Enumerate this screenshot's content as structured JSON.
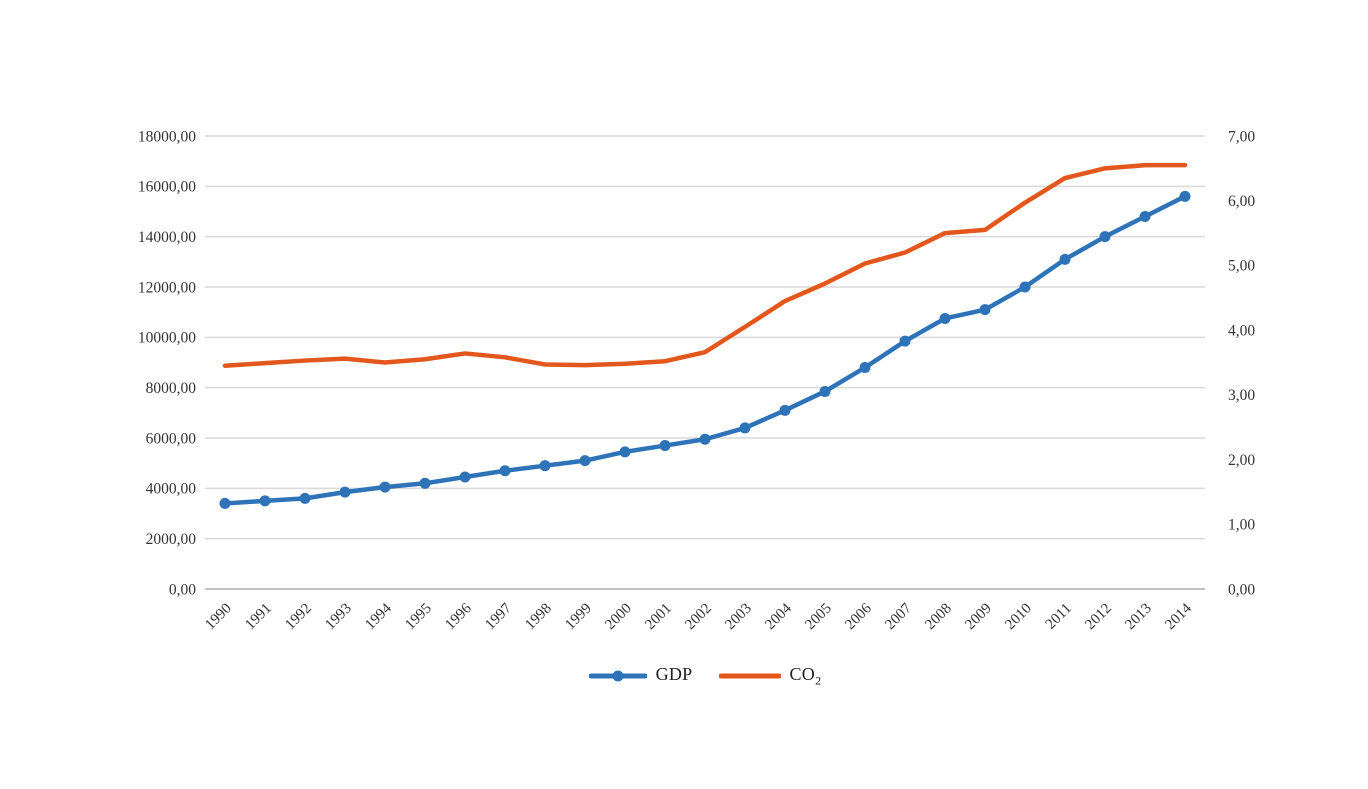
{
  "chart_data": {
    "type": "line",
    "title": "",
    "x": [
      "1990",
      "1991",
      "1992",
      "1993",
      "1994",
      "1995",
      "1996",
      "1997",
      "1998",
      "1999",
      "2000",
      "2001",
      "2002",
      "2003",
      "2004",
      "2005",
      "2006",
      "2007",
      "2008",
      "2009",
      "2010",
      "2011",
      "2012",
      "2013",
      "2014"
    ],
    "series": [
      {
        "name": "GDP",
        "axis": "left",
        "color": "#2E73B8",
        "marker": "circle",
        "values": [
          3400,
          3500,
          3600,
          3850,
          4050,
          4200,
          4450,
          4700,
          4900,
          5100,
          5450,
          5700,
          5950,
          6400,
          7100,
          7850,
          8800,
          9850,
          10750,
          11100,
          12000,
          13100,
          14000,
          14800,
          15600
        ]
      },
      {
        "name": "CO2",
        "axis": "right",
        "color": "#E4571C",
        "marker": "none",
        "values": [
          3.45,
          3.49,
          3.53,
          3.56,
          3.5,
          3.55,
          3.64,
          3.58,
          3.47,
          3.46,
          3.48,
          3.52,
          3.66,
          4.05,
          4.45,
          4.72,
          5.03,
          5.2,
          5.5,
          5.55,
          5.97,
          6.35,
          6.5,
          6.55,
          6.55
        ]
      }
    ],
    "left_axis": {
      "min": 0,
      "max": 18000,
      "step": 2000,
      "ticks": [
        "0,00",
        "2000,00",
        "4000,00",
        "6000,00",
        "8000,00",
        "10000,00",
        "12000,00",
        "14000,00",
        "16000,00",
        "18000,00"
      ]
    },
    "right_axis": {
      "min": 0,
      "max": 7,
      "step": 1,
      "ticks": [
        "0,00",
        "1,00",
        "2,00",
        "3,00",
        "4,00",
        "5,00",
        "6,00",
        "7,00"
      ]
    },
    "grid": "horizontal",
    "legend_position": "bottom",
    "decimal_separator": ","
  },
  "legend": {
    "items": [
      {
        "text": "GDP",
        "sub": ""
      },
      {
        "text": "CO",
        "sub": "2"
      }
    ]
  },
  "colors": {
    "gridline": "#D9D9D9",
    "baseline": "#ADADAD",
    "axis_text": "#333333",
    "background": "#FFFFFF"
  }
}
